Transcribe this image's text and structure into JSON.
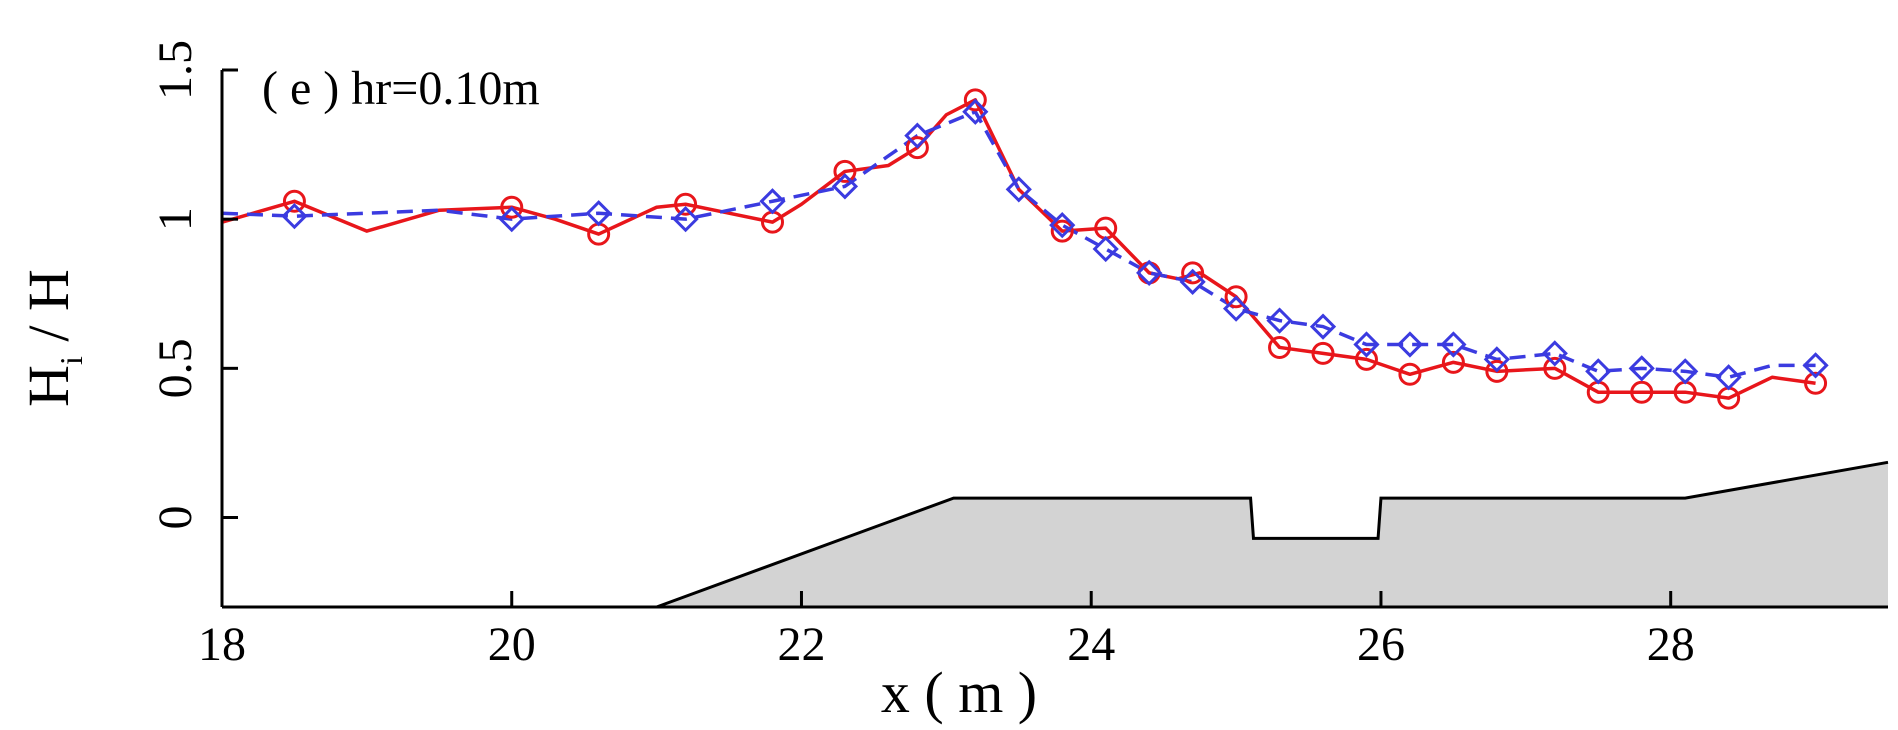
{
  "chart_data": {
    "type": "line",
    "title": "",
    "annotation": "( e ) hr=0.10m",
    "xlabel": "x ( m )",
    "ylabel": {
      "main": "H",
      "sub": "i",
      "rest": " / H"
    },
    "xlim": [
      18,
      29.5
    ],
    "ylim": [
      -0.3,
      1.5
    ],
    "xticks": [
      18,
      20,
      22,
      24,
      26,
      28
    ],
    "xtick_labels": [
      "18",
      "20",
      "22",
      "24",
      "26",
      "28"
    ],
    "yticks": [
      0,
      0.5,
      1,
      1.5
    ],
    "ytick_labels": [
      "0",
      "0.5",
      "1",
      "1.5"
    ],
    "grid": false,
    "legend": "none",
    "colors": {
      "red": "#e8161b",
      "blue": "#3b3be0",
      "terrain_fill": "#d3d3d3",
      "terrain_line": "#000000"
    },
    "series": [
      {
        "style": "solid-line",
        "color": "#e8161b",
        "x": [
          18.0,
          18.5,
          19.0,
          19.5,
          20.0,
          20.3,
          20.6,
          21.0,
          21.2,
          21.5,
          21.8,
          22.0,
          22.3,
          22.6,
          22.8,
          23.0,
          23.2,
          23.5,
          23.8,
          24.1,
          24.4,
          24.6,
          24.75,
          25.0,
          25.3,
          25.6,
          25.9,
          26.2,
          26.5,
          26.8,
          27.2,
          27.5,
          27.8,
          28.1,
          28.4,
          28.7,
          29.0
        ],
        "y": [
          0.99,
          1.06,
          0.96,
          1.03,
          1.04,
          1.0,
          0.95,
          1.04,
          1.05,
          1.02,
          0.99,
          1.05,
          1.16,
          1.18,
          1.24,
          1.35,
          1.4,
          1.1,
          0.96,
          0.97,
          0.82,
          0.8,
          0.82,
          0.74,
          0.57,
          0.55,
          0.53,
          0.48,
          0.52,
          0.49,
          0.5,
          0.42,
          0.42,
          0.42,
          0.4,
          0.47,
          0.45
        ]
      },
      {
        "style": "dashed-line",
        "color": "#3b3be0",
        "x": [
          18.0,
          18.5,
          19.5,
          20.0,
          20.6,
          21.2,
          21.8,
          22.3,
          22.8,
          23.2,
          23.5,
          23.8,
          24.1,
          24.4,
          24.7,
          25.0,
          25.3,
          25.6,
          25.9,
          26.2,
          26.5,
          26.8,
          27.2,
          27.5,
          27.8,
          28.1,
          28.4,
          28.7,
          29.0
        ],
        "y": [
          1.02,
          1.01,
          1.03,
          1.0,
          1.02,
          1.0,
          1.06,
          1.11,
          1.28,
          1.36,
          1.1,
          0.98,
          0.9,
          0.82,
          0.79,
          0.7,
          0.66,
          0.64,
          0.58,
          0.58,
          0.58,
          0.53,
          0.55,
          0.49,
          0.5,
          0.49,
          0.47,
          0.51,
          0.51
        ]
      }
    ],
    "markers": [
      {
        "series": 0,
        "shape": "circle",
        "x": [
          18.5,
          20.0,
          20.6,
          21.2,
          21.8,
          22.3,
          22.8,
          23.2,
          23.8,
          24.1,
          24.4,
          24.7,
          25.0,
          25.3,
          25.6,
          25.9,
          26.2,
          26.5,
          26.8,
          27.2,
          27.5,
          27.8,
          28.1,
          28.4,
          29.0
        ],
        "y": [
          1.06,
          1.04,
          0.95,
          1.05,
          0.99,
          1.16,
          1.24,
          1.4,
          0.96,
          0.97,
          0.82,
          0.82,
          0.74,
          0.57,
          0.55,
          0.53,
          0.48,
          0.52,
          0.49,
          0.5,
          0.42,
          0.42,
          0.42,
          0.4,
          0.45
        ]
      },
      {
        "series": 1,
        "shape": "diamond",
        "x": [
          18.5,
          20.0,
          20.6,
          21.2,
          21.8,
          22.3,
          22.8,
          23.2,
          23.5,
          23.8,
          24.1,
          24.4,
          24.7,
          25.0,
          25.3,
          25.6,
          25.9,
          26.2,
          26.5,
          26.8,
          27.2,
          27.5,
          27.8,
          28.1,
          28.4,
          29.0
        ],
        "y": [
          1.01,
          1.0,
          1.02,
          1.0,
          1.06,
          1.11,
          1.28,
          1.36,
          1.1,
          0.98,
          0.9,
          0.82,
          0.79,
          0.7,
          0.66,
          0.64,
          0.58,
          0.58,
          0.58,
          0.53,
          0.55,
          0.49,
          0.5,
          0.49,
          0.47,
          0.51
        ]
      }
    ],
    "terrain": {
      "x": [
        21.0,
        23.05,
        25.1,
        25.12,
        25.98,
        26.0,
        28.1,
        29.5
      ],
      "y": [
        -0.3,
        0.065,
        0.065,
        -0.07,
        -0.07,
        0.065,
        0.065,
        0.185
      ]
    }
  }
}
